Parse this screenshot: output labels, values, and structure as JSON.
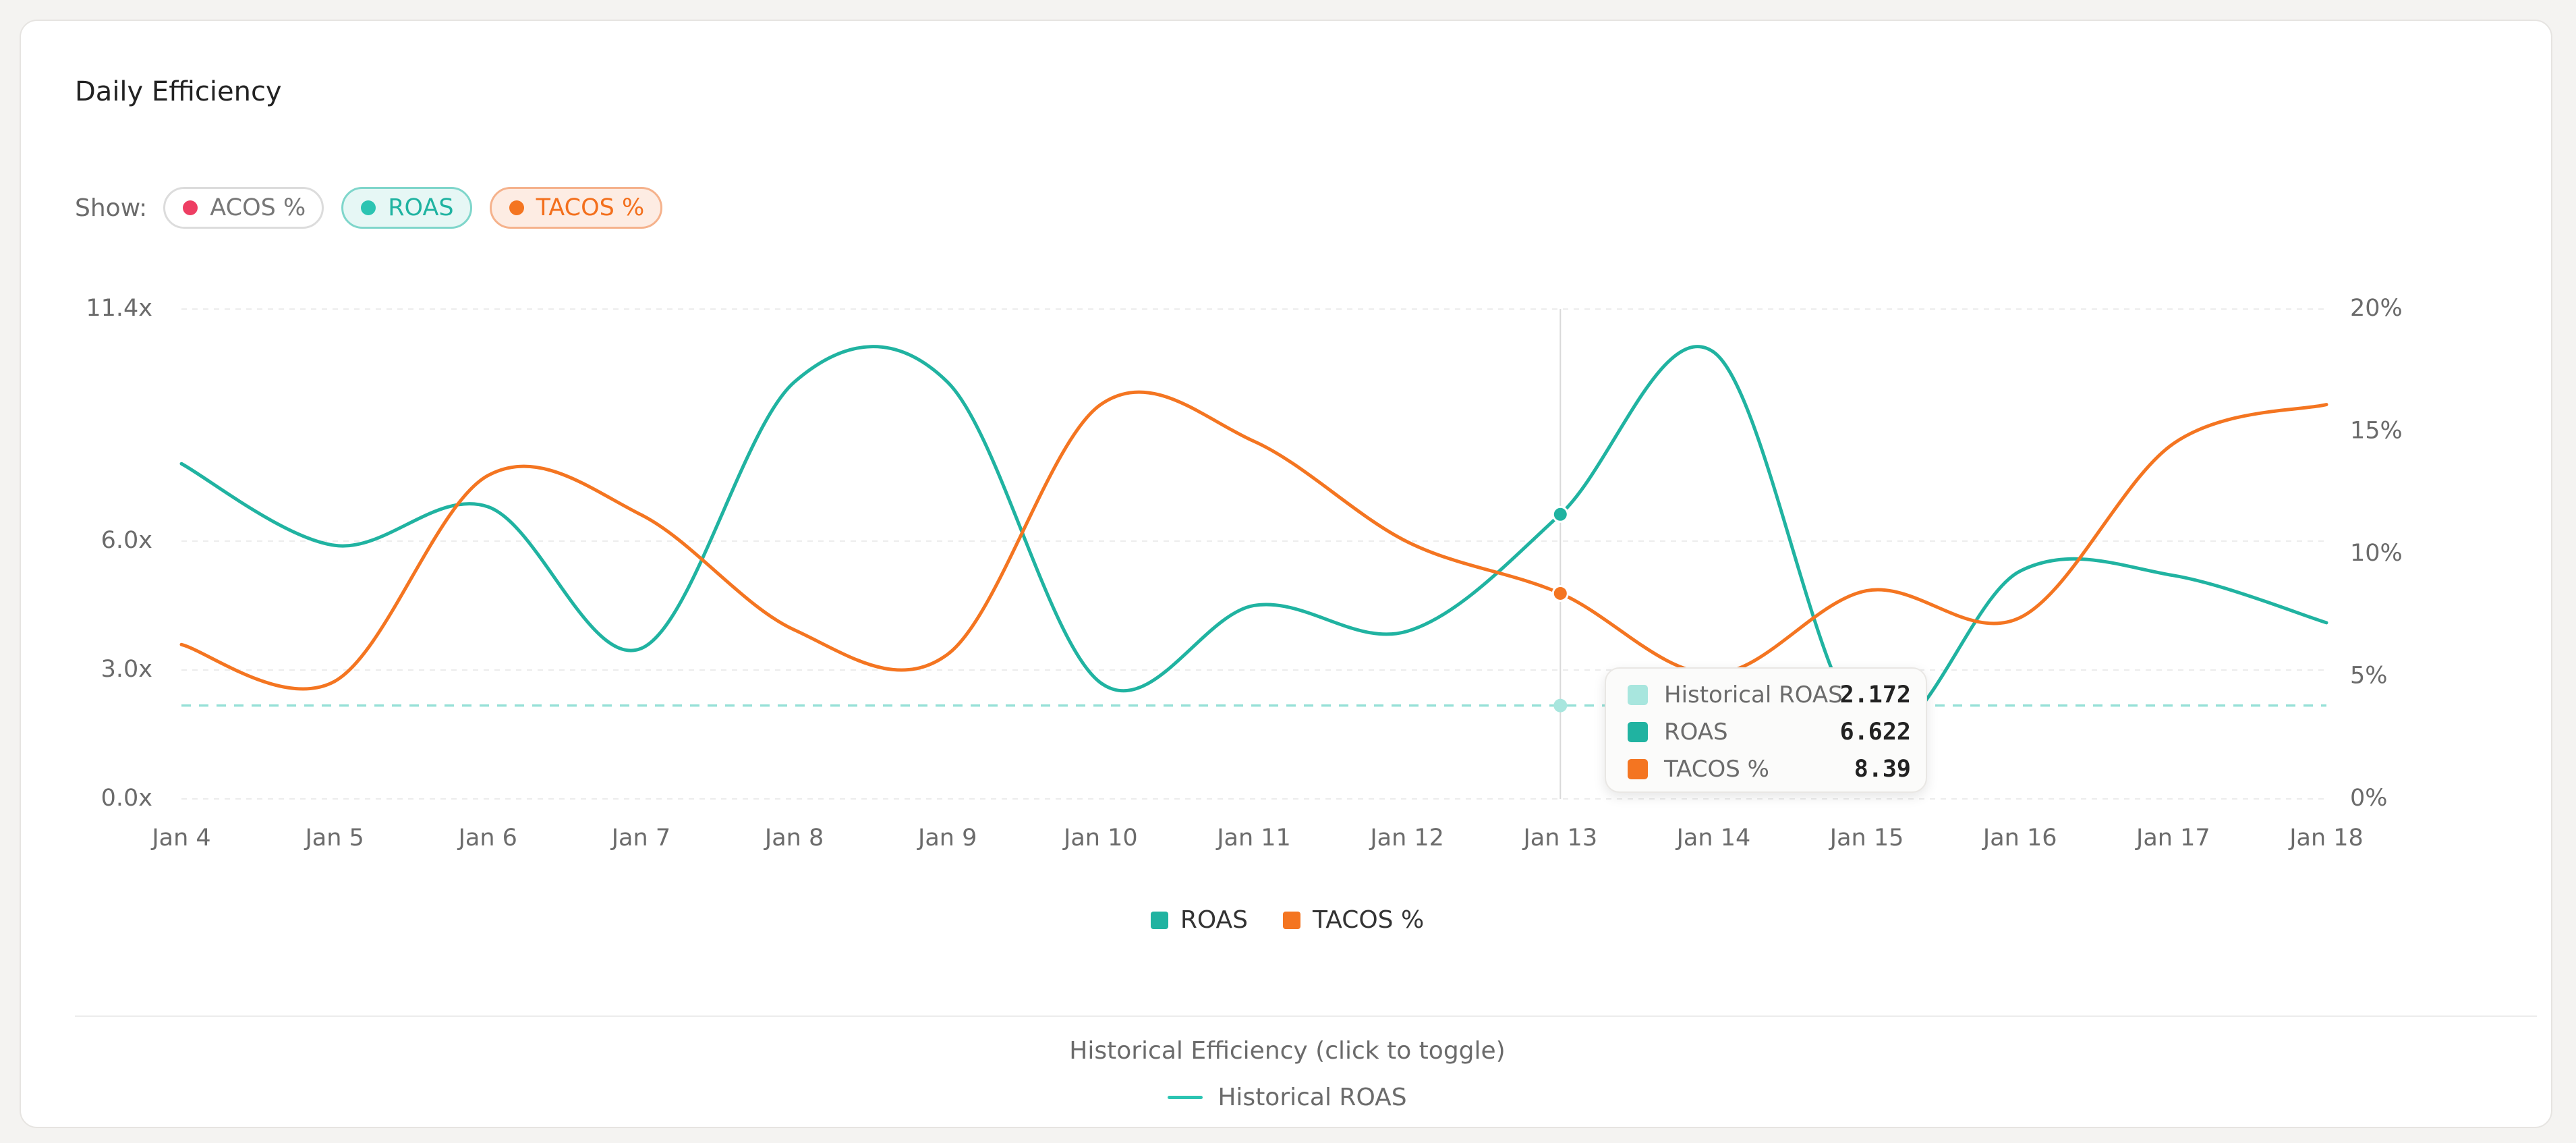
{
  "title": "Daily Efficiency",
  "show": {
    "label": "Show:",
    "chips": [
      {
        "label": "ACOS %",
        "color": "#ee3e63",
        "active": false
      },
      {
        "label": "ROAS",
        "color": "#2cc4b2",
        "active": true
      },
      {
        "label": "TACOS %",
        "color": "#f47521",
        "active": true
      }
    ]
  },
  "colors": {
    "roas": "#20b3a1",
    "tacos": "#f47521",
    "historical": "#7dd9ce"
  },
  "chart_data": {
    "type": "line",
    "x": [
      "Jan 4",
      "Jan 5",
      "Jan 6",
      "Jan 7",
      "Jan 8",
      "Jan 9",
      "Jan 10",
      "Jan 11",
      "Jan 12",
      "Jan 13",
      "Jan 14",
      "Jan 15",
      "Jan 16",
      "Jan 17",
      "Jan 18"
    ],
    "left_axis": {
      "ticks": [
        "0.0x",
        "3.0x",
        "6.0x",
        "11.4x"
      ],
      "tick_values": [
        0,
        3.0,
        6.0,
        11.4
      ],
      "ylim": [
        0,
        11.4
      ]
    },
    "right_axis": {
      "ticks": [
        "0%",
        "5%",
        "10%",
        "15%",
        "20%"
      ],
      "tick_values": [
        0,
        5,
        10,
        15,
        20
      ],
      "ylim": [
        0,
        20
      ]
    },
    "series": [
      {
        "name": "ROAS",
        "axis": "left",
        "values": [
          7.8,
          5.9,
          6.8,
          3.5,
          9.7,
          9.7,
          2.7,
          4.5,
          3.9,
          6.622,
          10.4,
          1.6,
          5.3,
          5.2,
          4.1
        ]
      },
      {
        "name": "TACOS %",
        "axis": "right",
        "values": [
          6.3,
          4.8,
          13.2,
          11.6,
          6.9,
          5.9,
          16.1,
          14.6,
          10.5,
          8.39,
          5.1,
          8.5,
          7.4,
          14.5,
          16.1
        ]
      },
      {
        "name": "Historical ROAS",
        "axis": "left",
        "dashed": true,
        "values": [
          2.172,
          2.172,
          2.172,
          2.172,
          2.172,
          2.172,
          2.172,
          2.172,
          2.172,
          2.172,
          2.172,
          2.172,
          2.172,
          2.172,
          2.172
        ]
      }
    ],
    "hover_index": 9,
    "legend": [
      "ROAS",
      "TACOS %"
    ],
    "grid": true
  },
  "tooltip": {
    "rows": [
      {
        "label": "Historical ROAS",
        "value": "2.172",
        "color": "#a8e6de"
      },
      {
        "label": "ROAS",
        "value": "6.622",
        "color": "#20b3a1"
      },
      {
        "label": "TACOS %",
        "value": "8.39",
        "color": "#f47521"
      }
    ]
  },
  "legend": {
    "items": [
      {
        "label": "ROAS",
        "color": "#20b3a1"
      },
      {
        "label": "TACOS %",
        "color": "#f47521"
      }
    ]
  },
  "historical": {
    "title": "Historical Efficiency (click to toggle)",
    "item_label": "Historical ROAS"
  }
}
